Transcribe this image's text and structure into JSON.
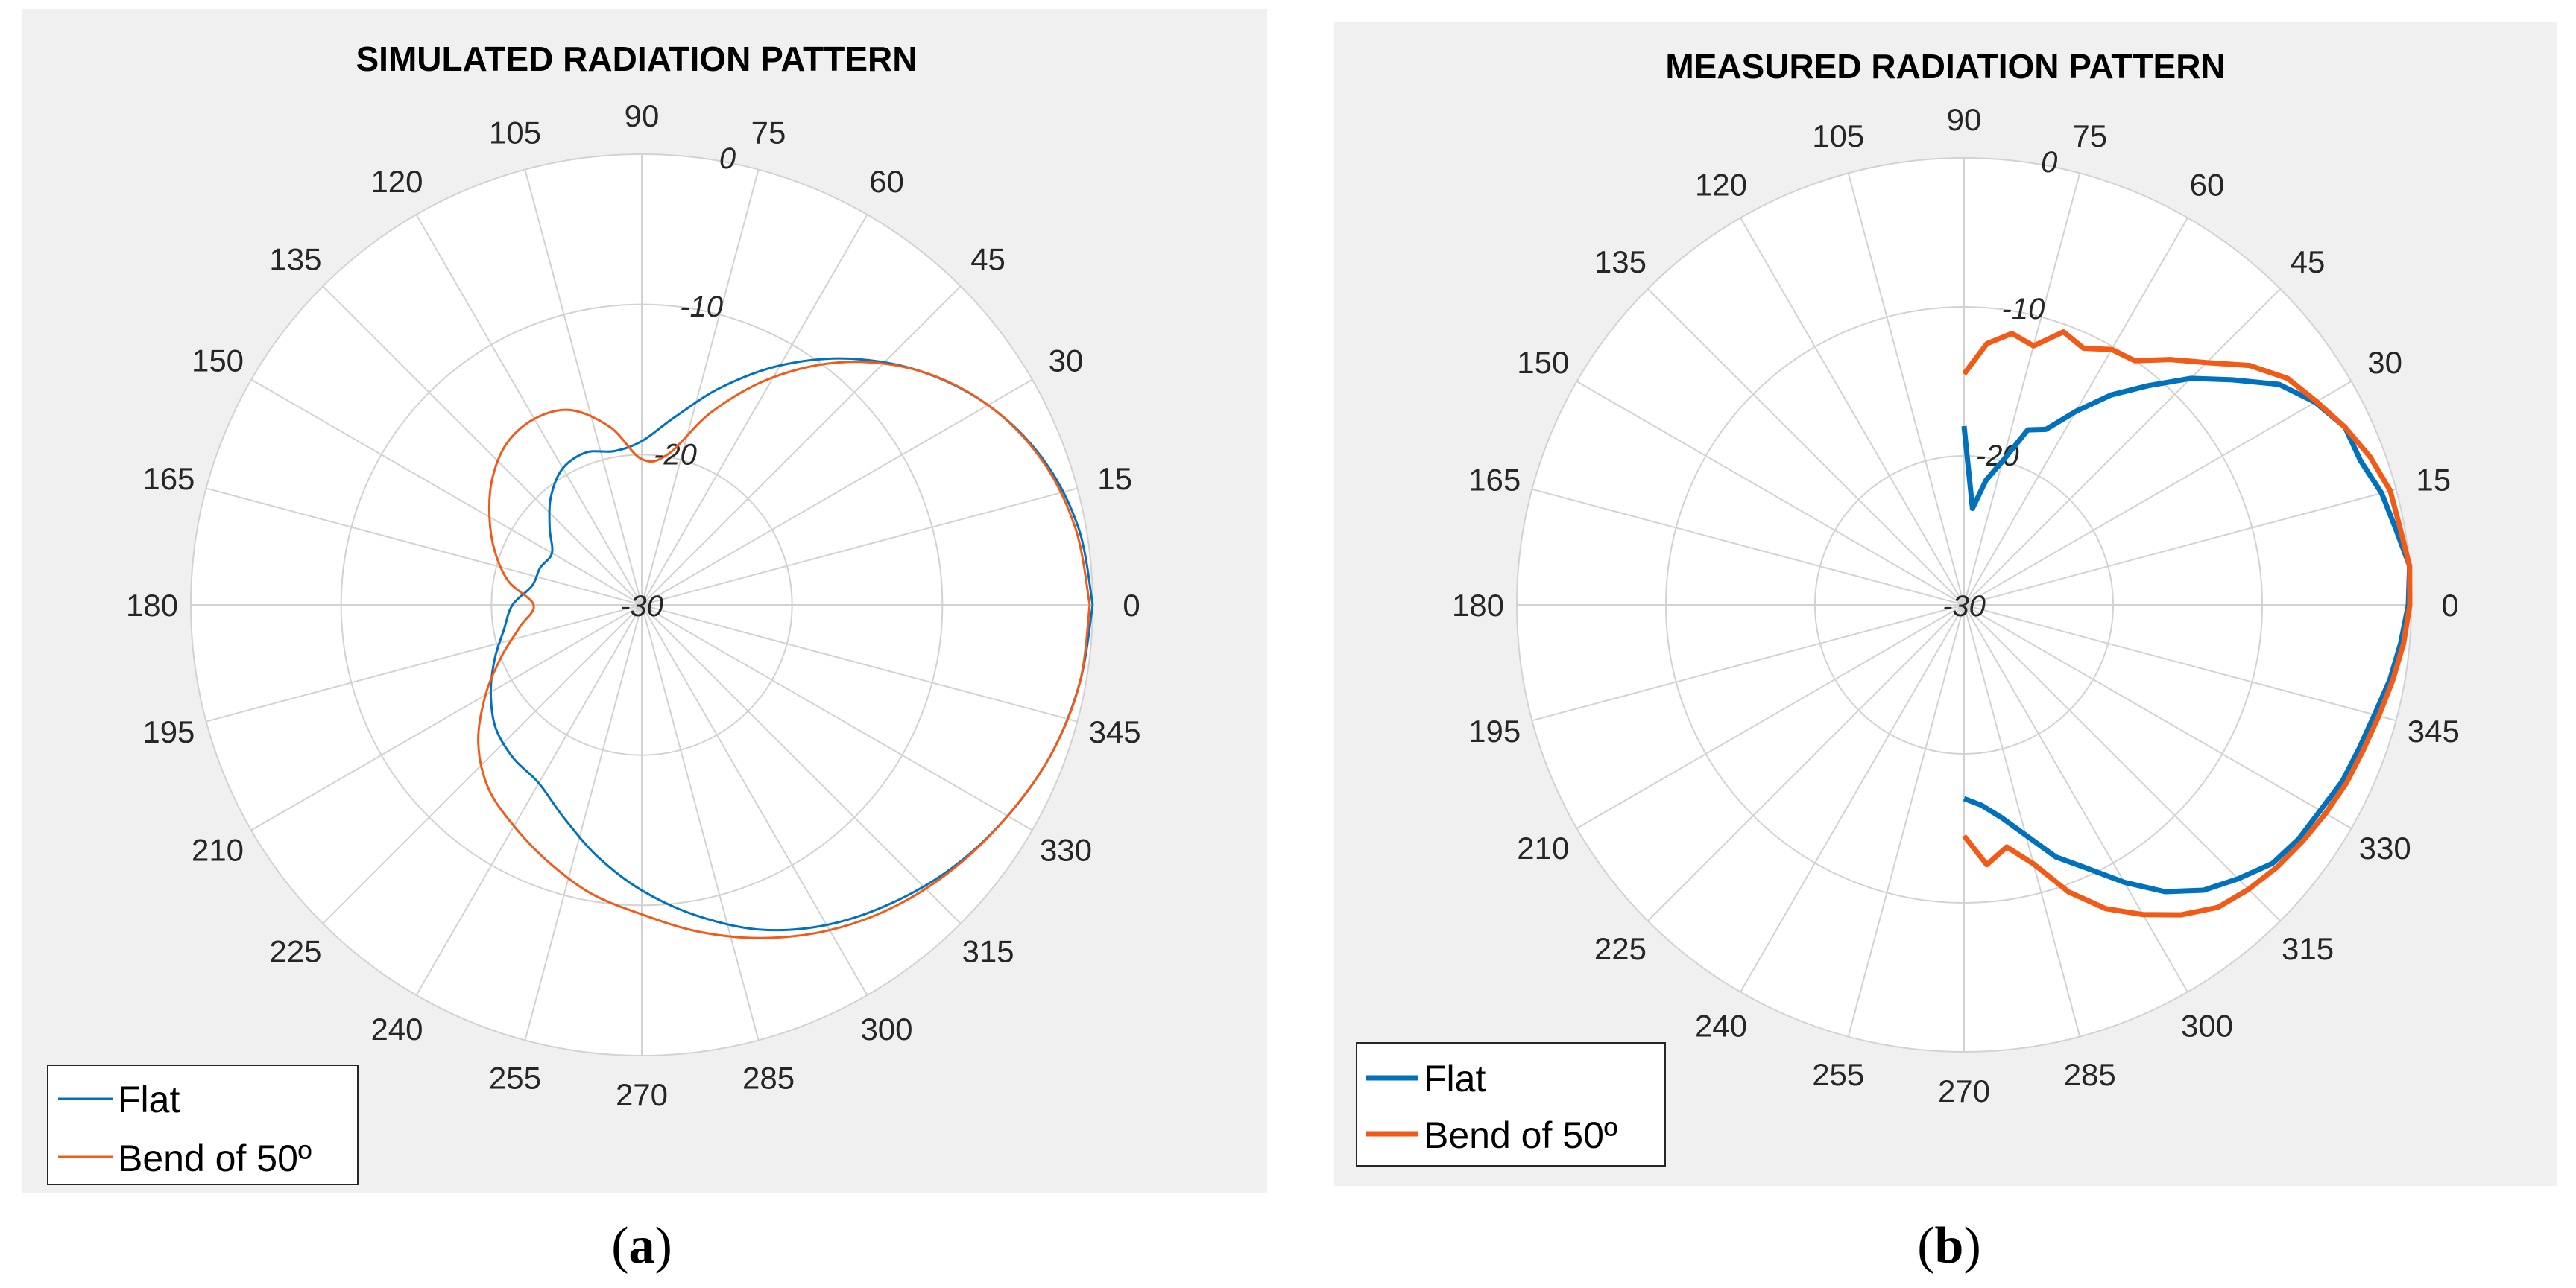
{
  "colors": {
    "flat": "#0072BD",
    "bend": "#F25A18"
  },
  "chart_data": [
    {
      "type": "polar-line",
      "title": "SIMULATED RADIATION PATTERN",
      "caption_letter": "a",
      "theta_ticks": [
        "0",
        "15",
        "30",
        "45",
        "60",
        "75",
        "90",
        "105",
        "120",
        "135",
        "150",
        "165",
        "180",
        "195",
        "210",
        "225",
        "240",
        "255",
        "270",
        "285",
        "300",
        "315",
        "330",
        "345"
      ],
      "r_ticks": [
        "-30",
        "-20",
        "-10",
        "0"
      ],
      "rlim": [
        -30,
        0
      ],
      "legend": [
        "Flat",
        "Bend of 50º"
      ],
      "series": [
        {
          "name": "Flat",
          "theta": [
            0,
            10,
            20,
            30,
            40,
            50,
            60,
            70,
            80,
            90,
            100,
            110,
            120,
            130,
            140,
            150,
            160,
            170,
            180,
            190,
            200,
            210,
            220,
            230,
            240,
            250,
            260,
            270,
            280,
            290,
            300,
            310,
            320,
            330,
            340,
            350,
            360
          ],
          "r": [
            0,
            -0.5,
            -1.6,
            -3.4,
            -5.8,
            -8.6,
            -11.6,
            -14.6,
            -17.3,
            -19.1,
            -19.6,
            -19.2,
            -19.5,
            -20.6,
            -22.0,
            -23.1,
            -22.8,
            -22.6,
            -21.4,
            -20.7,
            -19.6,
            -18.4,
            -17.3,
            -16.7,
            -16.3,
            -14.9,
            -13.0,
            -11.0,
            -9.0,
            -7.0,
            -5.4,
            -4.1,
            -2.9,
            -1.9,
            -1.0,
            -0.4,
            0
          ]
        },
        {
          "name": "Bend of 50º",
          "theta": [
            0,
            10,
            20,
            30,
            40,
            50,
            60,
            70,
            80,
            90,
            100,
            110,
            120,
            130,
            140,
            150,
            160,
            170,
            180,
            190,
            200,
            210,
            220,
            230,
            240,
            250,
            260,
            270,
            280,
            290,
            300,
            310,
            320,
            330,
            340,
            350,
            360
          ],
          "r": [
            -0.2,
            -0.7,
            -1.7,
            -3.4,
            -5.8,
            -8.9,
            -12.5,
            -16.3,
            -19.8,
            -20.3,
            -18.0,
            -16.2,
            -15.7,
            -16.0,
            -17.0,
            -18.3,
            -19.6,
            -21.0,
            -22.8,
            -21.8,
            -20.1,
            -18.0,
            -15.8,
            -14.1,
            -13.0,
            -11.8,
            -10.5,
            -9.4,
            -7.9,
            -6.4,
            -5.0,
            -3.8,
            -2.8,
            -1.9,
            -1.0,
            -0.4,
            -0.2
          ]
        }
      ]
    },
    {
      "type": "polar-line",
      "title": "MEASURED RADIATION PATTERN",
      "caption_letter": "b",
      "theta_ticks": [
        "0",
        "15",
        "30",
        "45",
        "60",
        "75",
        "90",
        "105",
        "120",
        "135",
        "150",
        "165",
        "180",
        "195",
        "210",
        "225",
        "240",
        "255",
        "270",
        "285",
        "300",
        "315",
        "330",
        "345"
      ],
      "r_ticks": [
        "-30",
        "-20",
        "-10",
        "0"
      ],
      "rlim": [
        -30,
        0
      ],
      "legend": [
        "Flat",
        "Bend of 50º"
      ],
      "series": [
        {
          "name": "Flat",
          "theta": [
            90,
            85,
            80,
            75,
            70,
            65,
            60,
            55,
            50,
            45,
            40,
            35,
            30,
            25,
            20,
            15,
            10,
            5,
            0,
            -5,
            -10,
            -15,
            -20,
            -25,
            -30,
            -35,
            -40,
            -45,
            -50,
            -55,
            -60,
            -65,
            -70,
            -75,
            -80,
            -85,
            -90
          ],
          "r": [
            -18,
            -23.5,
            -21.5,
            -20,
            -17.5,
            -17,
            -15,
            -12.8,
            -10.8,
            -8.5,
            -6.5,
            -4.2,
            -2.8,
            -1.8,
            -1.7,
            -1.0,
            -0.6,
            0,
            -0.2,
            -0.6,
            -1.0,
            -1.5,
            -1.8,
            -2.0,
            -2.4,
            -2.6,
            -3.0,
            -4.0,
            -5.0,
            -6.5,
            -8.5,
            -10.5,
            -12.0,
            -14.0,
            -15.5,
            -16.5,
            -17.0
          ]
        },
        {
          "name": "Bend of 50º",
          "theta": [
            90,
            85,
            80,
            75,
            70,
            65,
            60,
            55,
            50,
            45,
            40,
            35,
            30,
            25,
            20,
            15,
            10,
            5,
            0,
            -5,
            -10,
            -15,
            -20,
            -25,
            -30,
            -35,
            -40,
            -45,
            -50,
            -55,
            -60,
            -65,
            -70,
            -75,
            -80,
            -85,
            -90
          ],
          "r": [
            -14.5,
            -12.4,
            -11.5,
            -12,
            -10.5,
            -11,
            -10.2,
            -10,
            -8.5,
            -7,
            -5,
            -3.5,
            -2.7,
            -1.8,
            -1.0,
            -0.4,
            -0.3,
            0,
            -0.1,
            -0.4,
            -0.8,
            -1.2,
            -1.5,
            -1.7,
            -2.0,
            -2.3,
            -2.6,
            -3.0,
            -3.5,
            -4.6,
            -6,
            -7.5,
            -9.5,
            -12.0,
            -13.5,
            -12.5,
            -14.5
          ]
        }
      ]
    }
  ]
}
